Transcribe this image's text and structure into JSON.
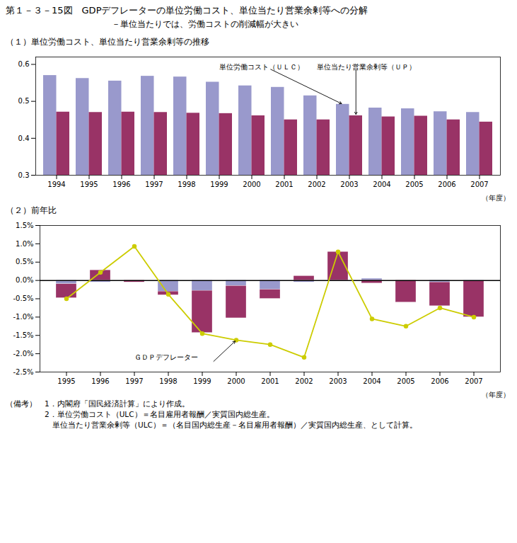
{
  "title": "第１－３－15図　GDPデフレーターの単位労働コスト、単位当たり営業余剰等への分解",
  "subtitle": "－単位当たりでは、労働コストの削減幅が大きい",
  "chart_data": [
    {
      "type": "bar",
      "title": "（１）単位労働コスト、単位当たり営業余剰等の推移",
      "x_label": "（年度）",
      "categories": [
        "1994",
        "1995",
        "1996",
        "1997",
        "1998",
        "1999",
        "2000",
        "2001",
        "2002",
        "2003",
        "2004",
        "2005",
        "2006",
        "2007"
      ],
      "series": [
        {
          "name": "単位労働コスト（ＵＬＣ）",
          "color": "#9999cc",
          "values": [
            0.57,
            0.562,
            0.555,
            0.568,
            0.566,
            0.552,
            0.542,
            0.538,
            0.515,
            0.492,
            0.482,
            0.48,
            0.472,
            0.47
          ]
        },
        {
          "name": "単位当たり営業余剰等（ＵＰ）",
          "color": "#993366",
          "values": [
            0.471,
            0.47,
            0.471,
            0.47,
            0.468,
            0.467,
            0.461,
            0.45,
            0.45,
            0.461,
            0.458,
            0.46,
            0.45,
            0.444
          ]
        }
      ],
      "ylim": [
        0.3,
        0.62
      ],
      "yticks": [
        0.3,
        0.4,
        0.5,
        0.6
      ],
      "grid": false
    },
    {
      "type": "bar",
      "title": "（２）前年比",
      "x_label": "（年度）",
      "stacked": true,
      "categories": [
        "1995",
        "1996",
        "1997",
        "1998",
        "1999",
        "2000",
        "2001",
        "2002",
        "2003",
        "2004",
        "2005",
        "2006",
        "2007"
      ],
      "series": [
        {
          "color": "#9999cc",
          "values": [
            -0.1,
            -0.05,
            0.0,
            -0.3,
            -0.28,
            -0.15,
            -0.25,
            -0.05,
            0.0,
            0.05,
            0.0,
            -0.05,
            -0.02
          ]
        },
        {
          "color": "#993366",
          "values": [
            -0.38,
            0.28,
            -0.05,
            -0.1,
            -1.15,
            -0.88,
            -0.25,
            0.12,
            0.78,
            -0.08,
            -0.6,
            -0.65,
            -0.98
          ]
        },
        {
          "name": "ＧＤＰデフレーター",
          "type": "line",
          "color": "#cccc00",
          "marker": "circle",
          "line_style": "solid",
          "values": [
            -0.5,
            0.22,
            0.93,
            -0.38,
            -1.45,
            -1.63,
            -1.75,
            -2.1,
            0.78,
            -1.05,
            -1.25,
            -0.75,
            -1.0
          ]
        }
      ],
      "ylim": [
        -2.5,
        1.5
      ],
      "yticks": [
        {
          "value": -2.5,
          "label": "-2.5%"
        },
        {
          "value": -2.0,
          "label": "-2.0%"
        },
        {
          "value": -1.5,
          "label": "-1.5%"
        },
        {
          "value": -1.0,
          "label": "-1.0%"
        },
        {
          "value": -0.5,
          "label": "-0.5%"
        },
        {
          "value": 0.0,
          "label": "0.0%"
        },
        {
          "value": 0.5,
          "label": "0.5%"
        },
        {
          "value": 1.0,
          "label": "1.0%"
        },
        {
          "value": 1.5,
          "label": "1.5%"
        }
      ],
      "grid": false
    }
  ],
  "notes": [
    "（備考）　1．内閣府「国民経済計算」により作成。",
    "　　　　　2．単位労働コスト（ULC）＝名目雇用者報酬／実質国内総生産。",
    "　　　　　　単位当たり営業余剰等（ULC）＝（名目国内総生産－名目雇用者報酬）／実質国内総生産、として計算。"
  ]
}
